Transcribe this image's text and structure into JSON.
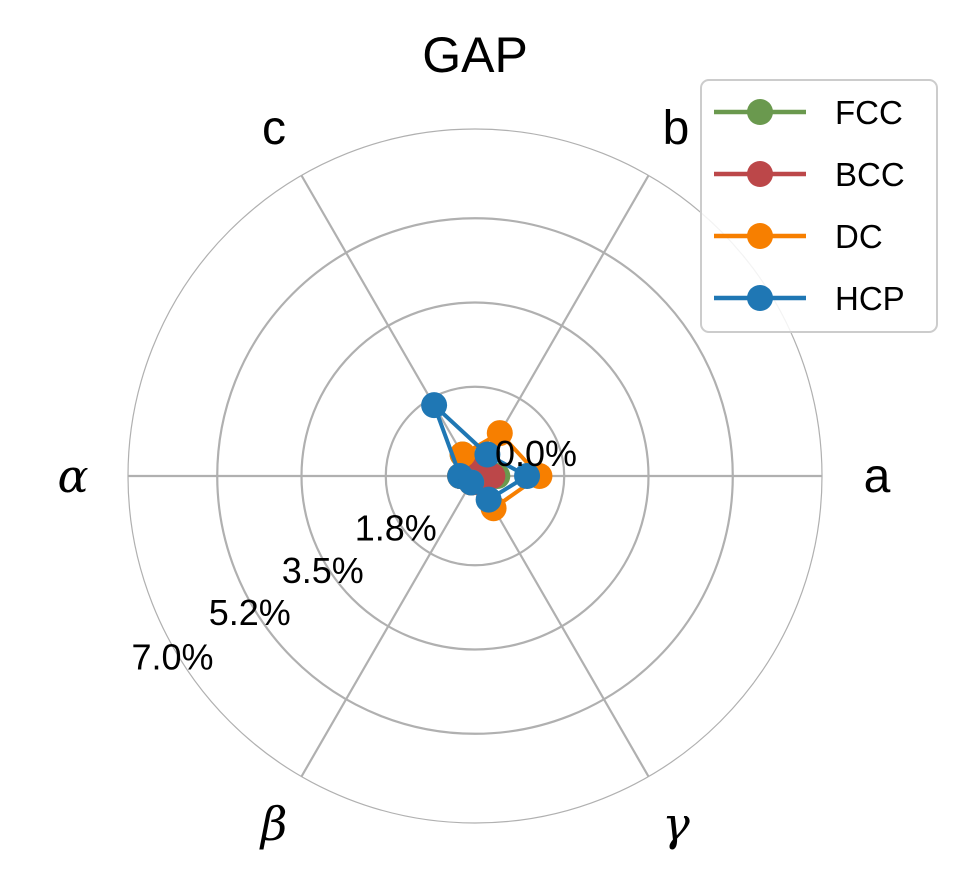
{
  "chart_data": {
    "type": "radar",
    "title": "GAP",
    "axes": [
      "a",
      "b",
      "c",
      "α",
      "β",
      "γ"
    ],
    "r_ticks": [
      "0.0%",
      "1.8%",
      "3.5%",
      "5.2%",
      "7.0%"
    ],
    "r_tick_values": [
      0.0,
      1.8,
      3.5,
      5.2,
      7.0
    ],
    "r_label_for_outer_ring": "7.0%",
    "r_max": 7.0,
    "grid": true,
    "legend_position": "top-right",
    "series": [
      {
        "name": "FCC",
        "color": "#6a994e",
        "values": [
          0.45,
          0.2,
          0.5,
          0.3,
          0.1,
          0.1
        ]
      },
      {
        "name": "BCC",
        "color": "#bc4749",
        "values": [
          0.35,
          0.25,
          0.3,
          0.3,
          0.15,
          0.15
        ]
      },
      {
        "name": "DC",
        "color": "#f77f00",
        "values": [
          1.3,
          1.0,
          0.5,
          0.3,
          0.15,
          0.75
        ]
      },
      {
        "name": "HCP",
        "color": "#1f77b4",
        "values": [
          1.05,
          0.5,
          1.65,
          0.3,
          0.15,
          0.55
        ]
      }
    ]
  }
}
